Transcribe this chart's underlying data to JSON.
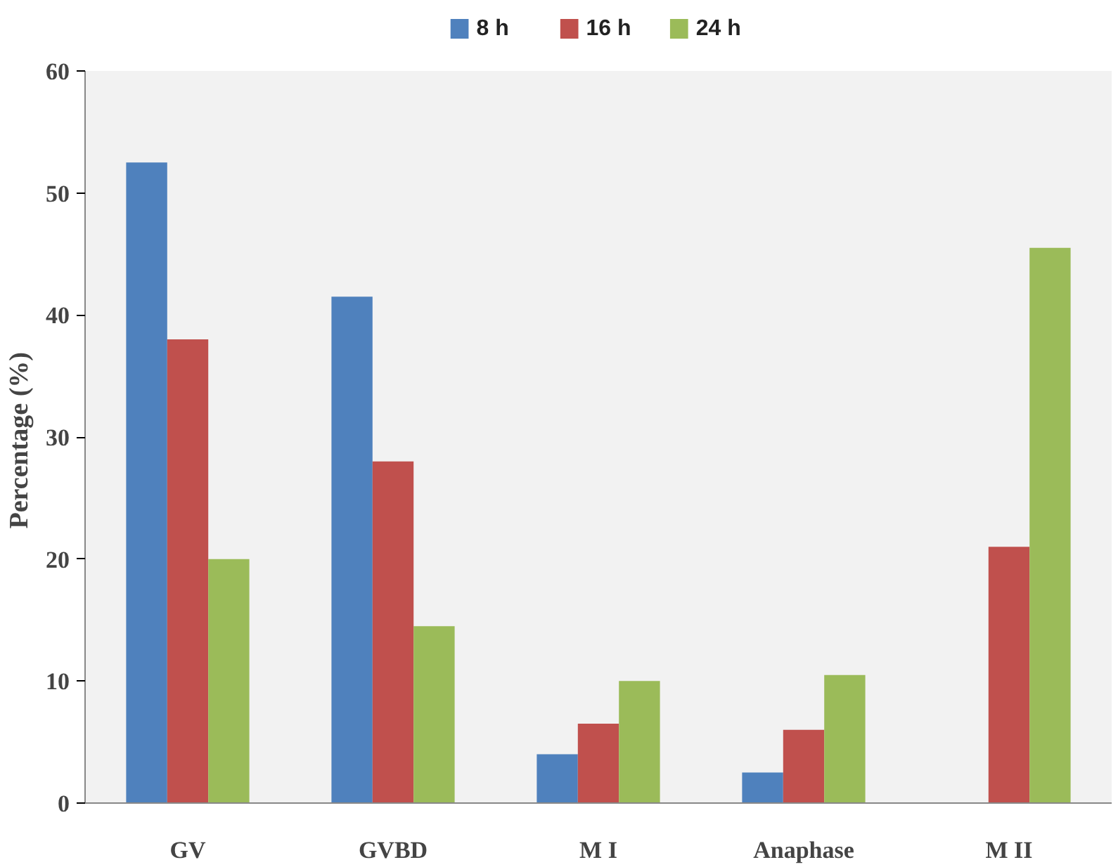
{
  "chart_data": {
    "type": "bar",
    "ylabel": "Percentage  (%)",
    "categories": [
      "GV",
      "GVBD",
      "M I",
      "Anaphase",
      "M II"
    ],
    "series": [
      {
        "name": "8 h",
        "color": "#4f81bd",
        "values": [
          52.5,
          41.5,
          4,
          2.5,
          0
        ]
      },
      {
        "name": "16 h",
        "color": "#c0504d",
        "values": [
          38,
          28,
          6.5,
          6,
          21
        ]
      },
      {
        "name": "24 h",
        "color": "#9bbb59",
        "values": [
          20,
          14.5,
          10,
          10.5,
          45.5
        ]
      }
    ],
    "ylim": [
      0,
      60
    ],
    "yticks": [
      0,
      10,
      20,
      30,
      40,
      50,
      60
    ],
    "grid": false,
    "legend": "top"
  }
}
